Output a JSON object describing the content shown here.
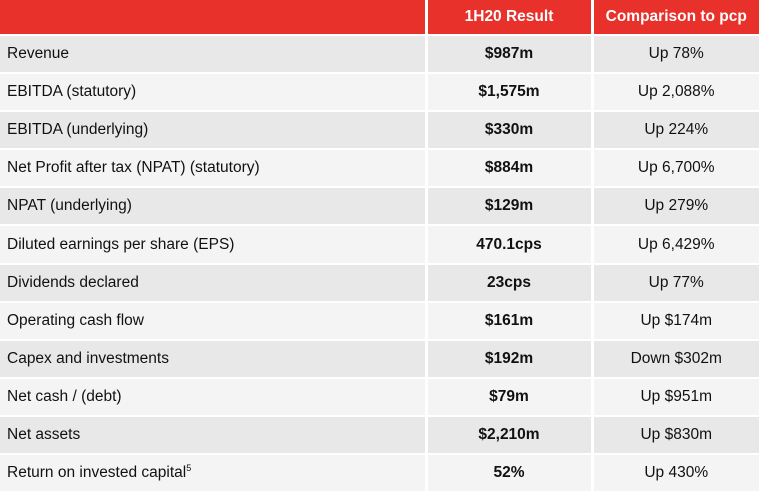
{
  "header": {
    "metric": "",
    "result": "1H20 Result",
    "comparison": "Comparison to pcp"
  },
  "colors": {
    "header_bg": "#e8312a",
    "row_odd": "#e8e8e8",
    "row_even": "#f4f4f4"
  },
  "rows": [
    {
      "metric": "Revenue",
      "result": "$987m",
      "comparison": "Up 78%"
    },
    {
      "metric": "EBITDA (statutory)",
      "result": "$1,575m",
      "comparison": "Up 2,088%"
    },
    {
      "metric": "EBITDA (underlying)",
      "result": "$330m",
      "comparison": "Up 224%"
    },
    {
      "metric": "Net Profit after tax (NPAT) (statutory)",
      "result": "$884m",
      "comparison": "Up 6,700%"
    },
    {
      "metric": "NPAT (underlying)",
      "result": "$129m",
      "comparison": "Up 279%"
    },
    {
      "metric": "Diluted earnings per share (EPS)",
      "result": "470.1cps",
      "comparison": "Up 6,429%"
    },
    {
      "metric": "Dividends declared",
      "result": "23cps",
      "comparison": "Up 77%"
    },
    {
      "metric": "Operating cash flow",
      "result": "$161m",
      "comparison": "Up $174m"
    },
    {
      "metric": "Capex and investments",
      "result": "$192m",
      "comparison": "Down $302m"
    },
    {
      "metric": "Net cash / (debt)",
      "result": "$79m",
      "comparison": "Up $951m"
    },
    {
      "metric": "Net assets",
      "result": "$2,210m",
      "comparison": "Up $830m"
    },
    {
      "metric": "Return on invested capital",
      "footnote": "5",
      "result": "52%",
      "comparison": "Up 430%"
    }
  ]
}
